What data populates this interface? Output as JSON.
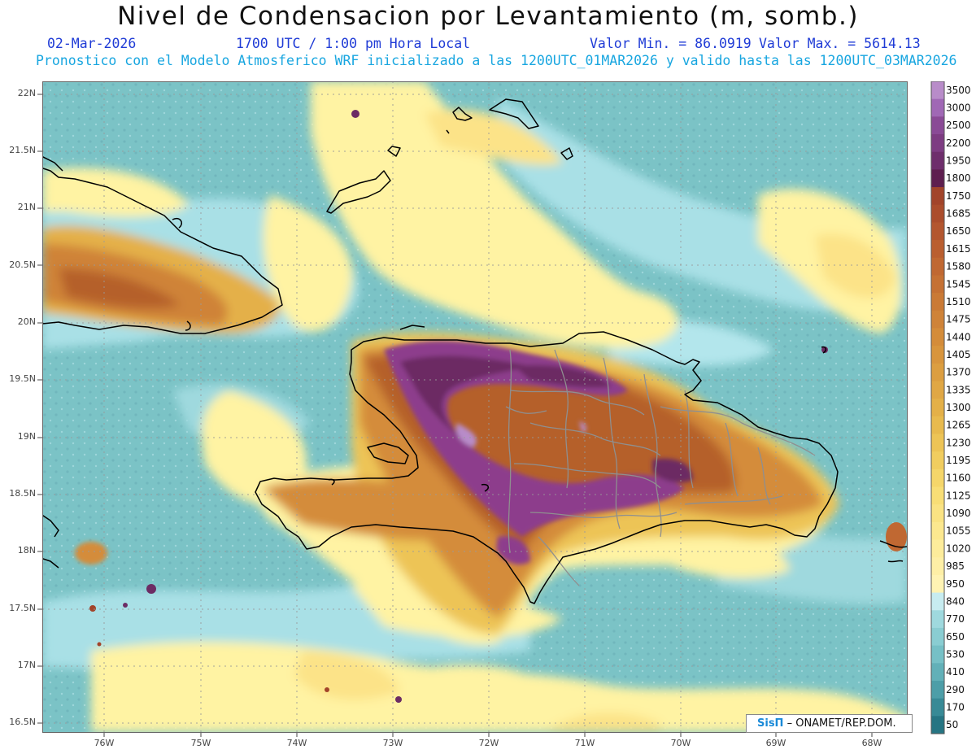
{
  "header": {
    "title": "Nivel de Condensacion por Levantamiento (m, somb.)",
    "date": "02-Mar-2026",
    "time": "1700 UTC / 1:00 pm Hora Local",
    "min_label": "Valor Min. = 86.0919",
    "max_label": "Valor Max. = 5614.13",
    "forecast_note": "Pronostico con el Modelo Atmosferico WRF inicializado a las 1200UTC_01MAR2026 y valido hasta las  1200UTC_03MAR2026"
  },
  "map": {
    "lat_labels": [
      "22N",
      "21.5N",
      "21N",
      "20.5N",
      "20N",
      "19.5N",
      "19N",
      "18.5N",
      "18N",
      "17.5N",
      "17N",
      "16.5N"
    ],
    "lon_labels": [
      "76W",
      "75W",
      "74W",
      "73W",
      "72W",
      "71W",
      "70W",
      "69W",
      "68W"
    ],
    "shading_field": "Nivel de Condensacion por Levantamiento",
    "palette": {
      "ocean_teal": "#7bc3c6",
      "light_cyan": "#b3e6ec",
      "pale_yellow": "#fff3a3",
      "yellow": "#fce388",
      "orange": "#d2873a",
      "dark_orange": "#b5602a",
      "purple": "#8d3e8c",
      "dark_purple": "#6c2c64",
      "coastline": "#000000",
      "provinces": "#8f8f8f"
    }
  },
  "colorbar": {
    "levels": [
      "3500",
      "3000",
      "2500",
      "2200",
      "1950",
      "1800",
      "1750",
      "1685",
      "1650",
      "1615",
      "1580",
      "1545",
      "1510",
      "1475",
      "1440",
      "1405",
      "1370",
      "1335",
      "1300",
      "1265",
      "1230",
      "1195",
      "1160",
      "1125",
      "1090",
      "1055",
      "1020",
      "985",
      "950",
      "840",
      "770",
      "650",
      "530",
      "410",
      "290",
      "170",
      "50"
    ],
    "colors": [
      "#b88cc9",
      "#a068b5",
      "#8a4a96",
      "#7d3c82",
      "#6e2e6c",
      "#5e1e4f",
      "#a2442a",
      "#ab4d2c",
      "#b3562f",
      "#ba5f30",
      "#c06832",
      "#c57134",
      "#ca7a36",
      "#cf8338",
      "#d48c3a",
      "#d8953d",
      "#dc9e40",
      "#e0a744",
      "#e4b048",
      "#e8ba4e",
      "#edc456",
      "#f1cd5f",
      "#f5d66a",
      "#f8de76",
      "#fae383",
      "#fce88f",
      "#fdec9b",
      "#feefa6",
      "#fff3b3",
      "#c7ecf0",
      "#9fd9de",
      "#8acdd2",
      "#76c0c6",
      "#62b0b8",
      "#4d9ea8",
      "#388a96",
      "#267583"
    ]
  },
  "credit": {
    "logo": "SisΠ",
    "text": "– ONAMET/REP.DOM."
  }
}
